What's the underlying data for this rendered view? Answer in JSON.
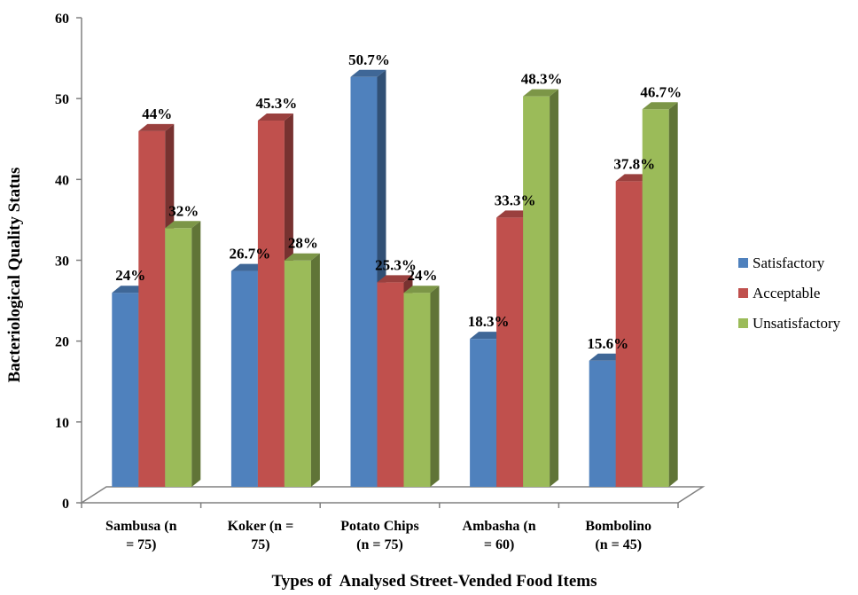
{
  "chart_data": {
    "type": "bar",
    "title": "",
    "xlabel": "Types of  Analysed Street-Vended Food Items",
    "ylabel": "Bacteriological Quality Status",
    "ylim": [
      0,
      60
    ],
    "yticks": [
      "0",
      "10",
      "20",
      "30",
      "40",
      "50",
      "60"
    ],
    "categories": [
      [
        "Sambusa (n",
        "= 75)"
      ],
      [
        "Koker (n =",
        "75)"
      ],
      [
        "Potato Chips",
        "(n = 75)"
      ],
      [
        "Ambasha (n",
        "= 60)"
      ],
      [
        "Bombolino",
        "(n = 45)"
      ]
    ],
    "series": [
      {
        "name": "Satisfactory",
        "color": "#4f81bd",
        "values": [
          24,
          26.7,
          50.7,
          18.3,
          15.6
        ],
        "labels": [
          "24%",
          "26.7%",
          "50.7%",
          "18.3%",
          "15.6%"
        ]
      },
      {
        "name": "Acceptable",
        "color": "#c0504d",
        "values": [
          44,
          45.3,
          25.3,
          33.3,
          37.8
        ],
        "labels": [
          "44%",
          "45.3%",
          "25.3%",
          "33.3%",
          "37.8%"
        ]
      },
      {
        "name": "Unsatisfactory",
        "color": "#9bbb59",
        "values": [
          32,
          28,
          24,
          48.3,
          46.7
        ],
        "labels": [
          "32%",
          "28%",
          "24%",
          "48.3%",
          "46.7%"
        ]
      }
    ],
    "legend_position": "right",
    "grid": false,
    "style": "3d-column"
  }
}
